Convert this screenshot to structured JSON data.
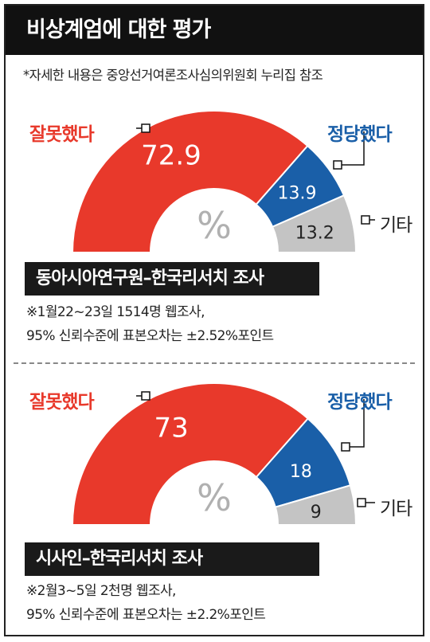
{
  "title": "비상계엄에 대한 평가",
  "note": "*자세한 내용은 중앙선거여론조사심의위원회 누리집 참조",
  "unit_symbol": "%",
  "colors": {
    "bad": "#e8392b",
    "good": "#1a5fa8",
    "other": "#c4c4c4"
  },
  "chart_data": [
    {
      "type": "pie",
      "variant": "half-donut",
      "categories": [
        "잘못했다",
        "정당했다",
        "기타"
      ],
      "values": [
        72.9,
        13.9,
        13.2
      ],
      "value_labels": [
        "72.9",
        "13.9",
        "13.2"
      ],
      "source": "동아시아연구원–한국리서치 조사",
      "footnote_line1": "※1월22~23일 1514명 웹조사,",
      "footnote_line2": "95% 신뢰수준에 표본오차는 ±2.52%포인트"
    },
    {
      "type": "pie",
      "variant": "half-donut",
      "categories": [
        "잘못했다",
        "정당했다",
        "기타"
      ],
      "values": [
        73,
        18,
        9
      ],
      "value_labels": [
        "73",
        "18",
        "9"
      ],
      "source": "시사인–한국리서치 조사",
      "footnote_line1": "※2월3~5일 2천명 웹조사,",
      "footnote_line2": "95% 신뢰수준에 표본오차는 ±2.2%포인트"
    }
  ]
}
